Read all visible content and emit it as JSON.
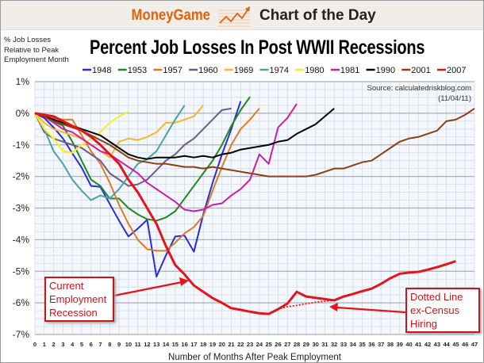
{
  "header": {
    "brand": "MoneyGame",
    "tagline": "Chart of the Day",
    "brand_icon": "rising-chart-arrow-icon",
    "brand_color": "#e0620e"
  },
  "chart_data": {
    "type": "line",
    "title": "Percent Job Losses In Post WWII Recessions",
    "ylabel": "% Job Losses Relative to Peak Employment Month",
    "xlabel": "Number of Months After Peak Employment",
    "source": "Source: calculatedriskblog.com",
    "date": "(11/04/11)",
    "xlim": [
      0,
      47
    ],
    "ylim": [
      -7,
      1
    ],
    "grid": true,
    "legend_position": "top",
    "x_ticks": [
      "0",
      "1",
      "2",
      "3",
      "4",
      "5",
      "6",
      "7",
      "8",
      "9",
      "10",
      "11",
      "12",
      "13",
      "14",
      "15",
      "16",
      "17",
      "18",
      "19",
      "20",
      "21",
      "22",
      "23",
      "24",
      "25",
      "26",
      "27",
      "28",
      "29",
      "30",
      "31",
      "32",
      "33",
      "34",
      "35",
      "36",
      "37",
      "38",
      "39",
      "40",
      "41",
      "42",
      "43",
      "44",
      "45",
      "46",
      "47"
    ],
    "y_ticks": [
      "1%",
      "0%",
      "-1%",
      "-2%",
      "-3%",
      "-4%",
      "-5%",
      "-6%",
      "-7%"
    ],
    "series": [
      {
        "name": "1948",
        "color": "#2b2bd8",
        "values": [
          0,
          -0.15,
          -0.45,
          -0.8,
          -1.27,
          -1.72,
          -2.3,
          -2.33,
          -2.87,
          -3.4,
          -3.9,
          -3.65,
          -3.37,
          -5.17,
          -4.5,
          -3.9,
          -3.87,
          -4.38,
          -3.2,
          -2.2,
          -1.3,
          -0.5,
          0.38
        ]
      },
      {
        "name": "1953",
        "color": "#1e8a1e",
        "values": [
          0,
          -0.1,
          -0.25,
          -0.4,
          -0.9,
          -1.5,
          -2.1,
          -2.3,
          -2.7,
          -2.7,
          -3.0,
          -3.2,
          -3.35,
          -3.4,
          -3.3,
          -3.1,
          -2.7,
          -2.3,
          -1.9,
          -1.5,
          -1.0,
          -0.4,
          0.1,
          0.52
        ]
      },
      {
        "name": "1957",
        "color": "#e07b22",
        "values": [
          0,
          -0.1,
          -0.15,
          -0.2,
          -0.2,
          -0.7,
          -1.2,
          -1.6,
          -2.2,
          -2.9,
          -3.5,
          -4.0,
          -4.3,
          -4.35,
          -4.35,
          -4.1,
          -3.8,
          -3.6,
          -3.25,
          -2.45,
          -1.7,
          -1.0,
          -0.5,
          -0.2,
          0.15
        ]
      },
      {
        "name": "1960",
        "color": "#6e5a8c",
        "values": [
          0,
          -0.6,
          -0.8,
          -0.9,
          -1.0,
          -1.1,
          -1.3,
          -1.5,
          -1.9,
          -2.1,
          -2.3,
          -2.25,
          -2.1,
          -1.8,
          -1.5,
          -1.3,
          -1.0,
          -0.8,
          -0.5,
          -0.2,
          0.1,
          0.15
        ]
      },
      {
        "name": "1969",
        "color": "#f2b82a",
        "values": [
          0,
          -0.3,
          -0.5,
          -0.6,
          -0.7,
          -0.8,
          -1.0,
          -1.2,
          -1.4,
          -0.9,
          -0.8,
          -0.85,
          -0.75,
          -0.6,
          -0.3,
          -0.3,
          -0.2,
          -0.1,
          0.25
        ]
      },
      {
        "name": "1974",
        "color": "#4aa0ad",
        "values": [
          0,
          -0.5,
          -1.2,
          -1.6,
          -2.1,
          -2.45,
          -2.75,
          -2.6,
          -2.7,
          -2.4,
          -2.0,
          -1.6,
          -1.45,
          -1.2,
          -0.7,
          -0.2,
          0.25
        ]
      },
      {
        "name": "1980",
        "color": "#f5f021",
        "values": [
          0,
          -0.5,
          -0.8,
          -1.2,
          -1.25,
          -1.0,
          -0.8,
          -0.6,
          -0.3,
          -0.1,
          0.05
        ]
      },
      {
        "name": "1981",
        "color": "#c81fa8",
        "values": [
          0,
          -0.1,
          -0.3,
          -0.5,
          -0.6,
          -0.8,
          -1.0,
          -1.2,
          -1.3,
          -1.5,
          -1.7,
          -1.9,
          -2.2,
          -2.4,
          -2.6,
          -2.8,
          -3.05,
          -3.1,
          -3.05,
          -2.9,
          -2.85,
          -2.6,
          -2.4,
          -2.1,
          -1.3,
          -1.6,
          -0.45,
          -0.15,
          0.3
        ]
      },
      {
        "name": "1990",
        "color": "#000000",
        "values": [
          0,
          -0.1,
          -0.2,
          -0.3,
          -0.4,
          -0.5,
          -0.6,
          -0.7,
          -0.9,
          -1.1,
          -1.3,
          -1.4,
          -1.45,
          -1.4,
          -1.4,
          -1.4,
          -1.35,
          -1.4,
          -1.35,
          -1.4,
          -1.3,
          -1.25,
          -1.15,
          -1.1,
          -1.05,
          -1.0,
          -0.9,
          -0.85,
          -0.65,
          -0.5,
          -0.35,
          -0.1,
          0.15
        ]
      },
      {
        "name": "2001",
        "color": "#8b3f12",
        "values": [
          0,
          -0.1,
          -0.25,
          -0.35,
          -0.45,
          -0.55,
          -0.7,
          -0.85,
          -1.0,
          -1.2,
          -1.4,
          -1.5,
          -1.55,
          -1.6,
          -1.6,
          -1.65,
          -1.7,
          -1.7,
          -1.75,
          -1.7,
          -1.75,
          -1.8,
          -1.85,
          -1.9,
          -1.95,
          -2.0,
          -2.0,
          -2.0,
          -2.0,
          -2.0,
          -1.95,
          -1.85,
          -1.75,
          -1.75,
          -1.65,
          -1.55,
          -1.5,
          -1.3,
          -1.1,
          -0.9,
          -0.8,
          -0.75,
          -0.65,
          -0.55,
          -0.25,
          -0.2,
          -0.05,
          0.15
        ]
      },
      {
        "name": "2007",
        "color": "#e3141b",
        "values": [
          0,
          -0.05,
          -0.1,
          -0.25,
          -0.4,
          -0.55,
          -0.75,
          -1.0,
          -1.3,
          -1.6,
          -2.1,
          -2.5,
          -3.0,
          -3.5,
          -4.2,
          -4.8,
          -5.1,
          -5.45,
          -5.65,
          -5.85,
          -6.0,
          -6.17,
          -6.22,
          -6.28,
          -6.33,
          -6.35,
          -6.2,
          -6.02,
          -5.65,
          -5.8,
          -5.84,
          -5.88,
          -5.92,
          -5.8,
          -5.72,
          -5.63,
          -5.55,
          -5.4,
          -5.22,
          -5.08,
          -5.04,
          -5.02,
          -4.95,
          -4.87,
          -4.78,
          -4.68
        ]
      }
    ],
    "dotted_series": {
      "color": "#e3141b",
      "x": [
        25,
        26,
        27,
        28,
        29,
        30,
        31,
        32
      ],
      "values": [
        -6.35,
        -6.2,
        -6.12,
        -6.08,
        -6.03,
        -5.98,
        -5.95,
        -5.92
      ]
    },
    "annotations": [
      {
        "text": "Current Employment Recession",
        "lines": [
          "Current",
          "Employment",
          "Recession"
        ]
      },
      {
        "text": "Dotted Line ex-Census Hiring",
        "lines": [
          "Dotted Line",
          "ex-Census",
          "Hiring"
        ]
      }
    ]
  }
}
